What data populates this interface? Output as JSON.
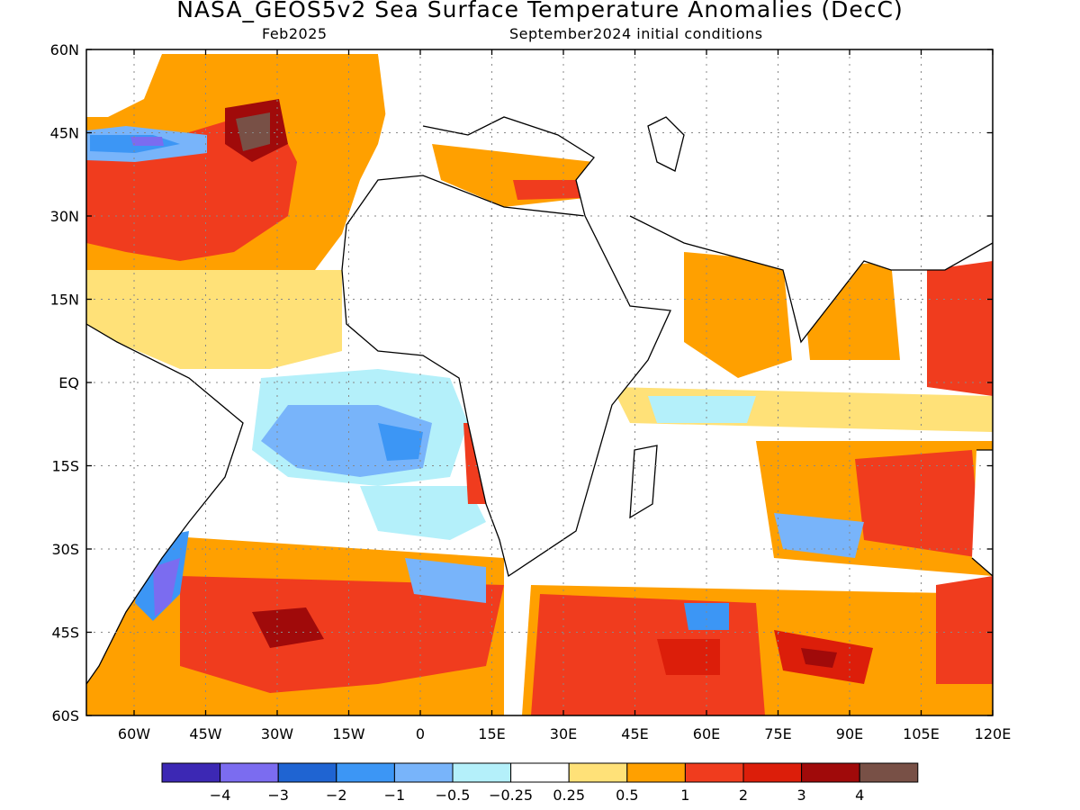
{
  "header": {
    "title": "NASA_GEOS5v2 Sea Surface Temperature Anomalies (DecC)",
    "valid_month": "Feb2025",
    "init_conditions": "September2024 initial conditions"
  },
  "map": {
    "lat_labels": [
      "60N",
      "45N",
      "30N",
      "15N",
      "EQ",
      "15S",
      "30S",
      "45S",
      "60S"
    ],
    "lon_labels": [
      "60W",
      "45W",
      "30W",
      "15W",
      "0",
      "15E",
      "30E",
      "45E",
      "60E",
      "75E",
      "90E",
      "105E",
      "120E"
    ],
    "lon_range": [
      -70,
      120
    ],
    "lat_range": [
      -60,
      60
    ]
  },
  "colorbar": {
    "colors": [
      "#3c28b4",
      "#7b6cf0",
      "#1f64d2",
      "#3c96f5",
      "#78b4fa",
      "#b4f0fa",
      "#ffffff",
      "#ffe178",
      "#ffa000",
      "#f03c1e",
      "#dc1e0a",
      "#a00a0a",
      "#785046"
    ],
    "labels": [
      "−4",
      "−3",
      "−2",
      "−1",
      "−0.5",
      "−0.25",
      "0.25",
      "0.5",
      "1",
      "2",
      "3",
      "4"
    ]
  }
}
